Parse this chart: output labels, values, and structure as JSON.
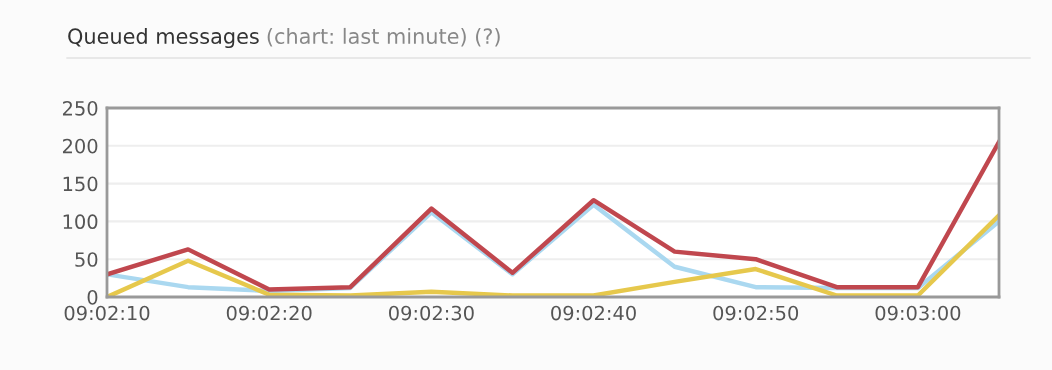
{
  "chart_data": {
    "type": "line",
    "title": "Queued messages",
    "subtitle": "(chart: last minute) (?)",
    "x": [
      9.036111,
      9.0375,
      9.038889,
      9.040278,
      9.041667,
      9.043056,
      9.044444,
      9.045833,
      9.047222,
      9.048611,
      9.05,
      9.051389
    ],
    "series": [
      {
        "color": "#aad8f0",
        "values": [
          30,
          13,
          8,
          12,
          112,
          30,
          122,
          40,
          13,
          12,
          12,
          100
        ]
      },
      {
        "color": "#e6c84c",
        "values": [
          0,
          48,
          3,
          2,
          7,
          2,
          2,
          20,
          37,
          2,
          2,
          108
        ]
      },
      {
        "color": "#c0474e",
        "values": [
          30,
          63,
          10,
          13,
          117,
          32,
          128,
          60,
          50,
          13,
          13,
          205
        ]
      }
    ],
    "xlim": [
      9.036111,
      9.051389
    ],
    "xticks": [
      {
        "value": 9.036111,
        "label": "09:02:10"
      },
      {
        "value": 9.038889,
        "label": "09:02:20"
      },
      {
        "value": 9.041667,
        "label": "09:02:30"
      },
      {
        "value": 9.044444,
        "label": "09:02:40"
      },
      {
        "value": 9.047222,
        "label": "09:02:50"
      },
      {
        "value": 9.05,
        "label": "09:03:00"
      }
    ],
    "ylim": [
      0,
      250
    ],
    "yticks": [
      0,
      50,
      100,
      150,
      200,
      250
    ],
    "grid": "y",
    "legend": false,
    "marker": "none",
    "line_style": "solid"
  }
}
